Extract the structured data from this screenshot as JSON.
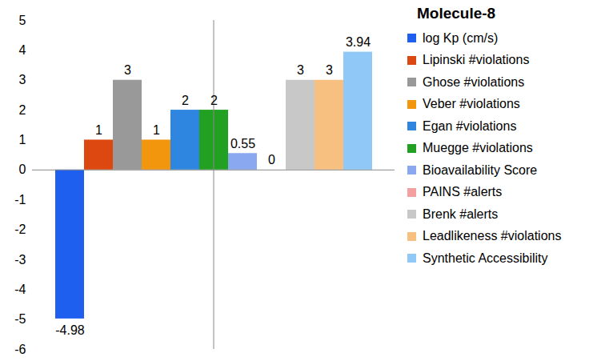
{
  "chart_data": {
    "type": "bar",
    "title": "Molecule-8",
    "categories": [
      "log Kp (cm/s)",
      "Lipinski #violations",
      "Ghose #violations",
      "Veber #violations",
      "Egan #violations",
      "Muegge #violations",
      "Bioavailability Score",
      "PAINS #alerts",
      "Brenk #alerts",
      "Leadlikeness #violations",
      "Synthetic Accessibility"
    ],
    "values": [
      -4.98,
      1,
      3,
      1,
      2,
      2,
      0.55,
      0,
      3,
      3,
      3.94
    ],
    "colors": [
      "#1f5ff0",
      "#dc4810",
      "#999999",
      "#f2960d",
      "#2f86e0",
      "#22a022",
      "#8aa8f0",
      "#f4a0a0",
      "#c8c8c8",
      "#f8c080",
      "#90c8f8"
    ],
    "ylim": [
      -6,
      5
    ],
    "yticks": [
      -6,
      -5,
      -4,
      -3,
      -2,
      -1,
      0,
      1,
      2,
      3,
      4,
      5
    ],
    "grid": false,
    "legend": "right",
    "data_labels": true,
    "tick_labels": "y"
  }
}
